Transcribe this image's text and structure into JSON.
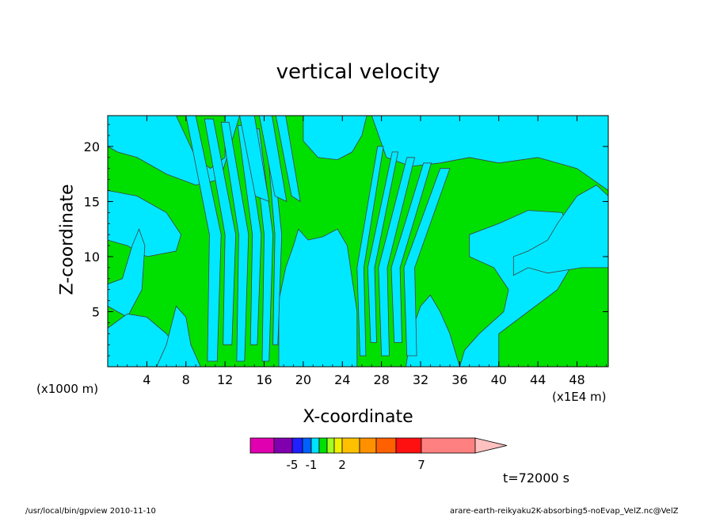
{
  "chart_data": {
    "type": "heatmap",
    "title": "vertical velocity",
    "xlabel": "X-coordinate",
    "ylabel": "Z-coordinate",
    "x_unit_left": "(x1000 m)",
    "x_unit_right": "(x1E4 m)",
    "xlim": [
      0,
      51.2
    ],
    "ylim": [
      0,
      22.8
    ],
    "x_ticks": [
      4,
      8,
      12,
      16,
      20,
      24,
      28,
      32,
      36,
      40,
      44,
      48
    ],
    "y_ticks": [
      5,
      10,
      15,
      20
    ],
    "colorbar": {
      "colors": [
        "#e000b0",
        "#8000b0",
        "#2020ff",
        "#0060ff",
        "#00e0ff",
        "#00e000",
        "#a0ff20",
        "#f0f000",
        "#ffc000",
        "#ff9000",
        "#ff6000",
        "#ff1010",
        "#ff8080",
        "#ffc0c0"
      ],
      "labels": [
        {
          "text": "-5",
          "value": -5
        },
        {
          "text": "-1",
          "value": -1
        },
        {
          "text": "2",
          "value": 2
        },
        {
          "text": "7",
          "value": 7
        }
      ]
    },
    "field_colors": {
      "positive": "#00e000",
      "negative": "#00e8ff",
      "contour": "#404040"
    },
    "time": "t=72000 s"
  },
  "footer": {
    "left": "/usr/local/bin/gpview  2010-11-10",
    "right": "arare-earth-reikyaku2K-absorbing5-noEvap_VelZ.nc@VelZ"
  }
}
